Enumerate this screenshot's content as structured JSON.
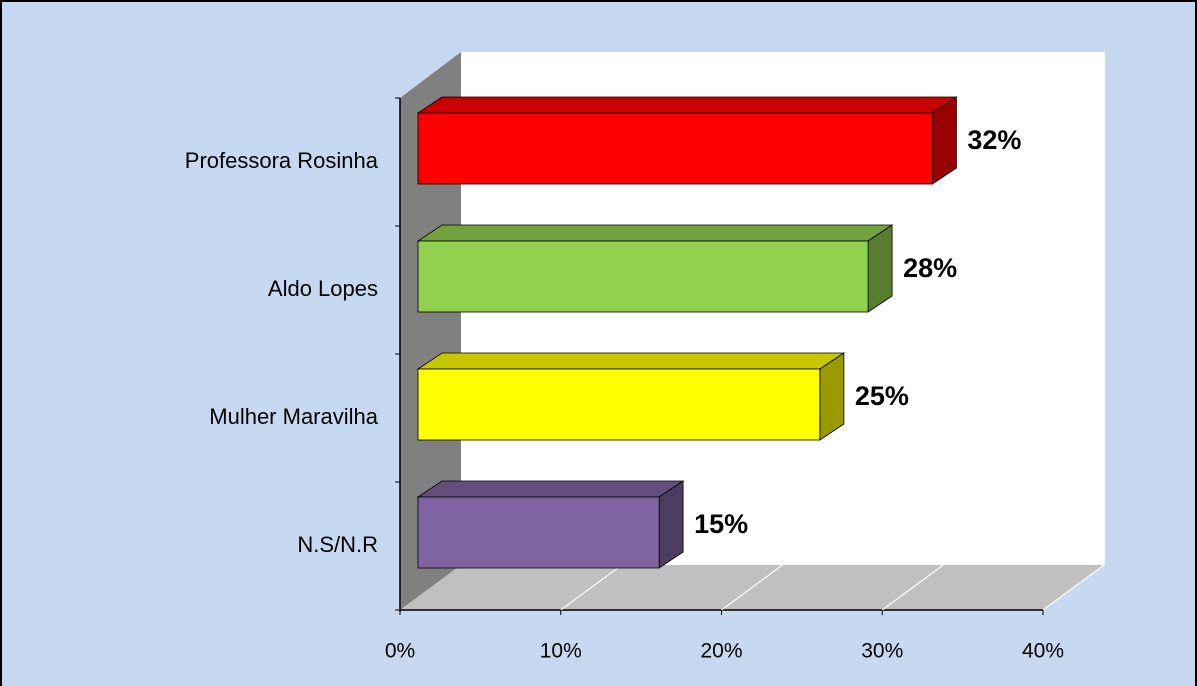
{
  "chart_data": {
    "type": "bar3d_horizontal",
    "categories": [
      "Professora Rosinha",
      "Aldo Lopes",
      "Mulher Maravilha",
      "N.S/N.R"
    ],
    "values": [
      32,
      28,
      25,
      15
    ],
    "value_labels": [
      "32%",
      "28%",
      "25%",
      "15%"
    ],
    "colors": [
      "#ff0000",
      "#92d050",
      "#ffff00",
      "#8064a2"
    ],
    "xlim": [
      0,
      40
    ],
    "xticks": [
      {
        "value": 0,
        "label": "0%"
      },
      {
        "value": 10,
        "label": "10%"
      },
      {
        "value": 20,
        "label": "20%"
      },
      {
        "value": 30,
        "label": "30%"
      },
      {
        "value": 40,
        "label": "40%"
      }
    ],
    "grid": true
  }
}
